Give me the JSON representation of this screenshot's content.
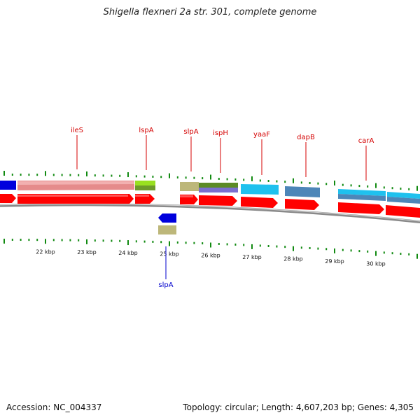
{
  "title": "Shigella flexneri 2a str. 301, complete genome",
  "footer": {
    "accession": "Accession: NC_004337",
    "summary": "Topology: circular; Length: 4,607,203 bp; Genes: 4,305"
  },
  "colors": {
    "label_forward": "#d40000",
    "label_reverse": "#0000cc",
    "tick": "#118a11",
    "backbone": "#8a8a8a",
    "cds": "#ff0000"
  },
  "axis": {
    "ticks": [
      {
        "kbp": 22,
        "label": "22 kbp"
      },
      {
        "kbp": 23,
        "label": "23 kbp"
      },
      {
        "kbp": 24,
        "label": "24 kbp"
      },
      {
        "kbp": 25,
        "label": "25 kbp"
      },
      {
        "kbp": 26,
        "label": "26 kbp"
      },
      {
        "kbp": 27,
        "label": "27 kbp"
      },
      {
        "kbp": 28,
        "label": "28 kbp"
      },
      {
        "kbp": 29,
        "label": "29 kbp"
      },
      {
        "kbp": 30,
        "label": "30 kbp"
      }
    ]
  },
  "gene_labels": [
    {
      "text": "ileS",
      "strand": "forward"
    },
    {
      "text": "lspA",
      "strand": "forward"
    },
    {
      "text": "slpA",
      "strand": "forward"
    },
    {
      "text": "ispH",
      "strand": "forward"
    },
    {
      "text": "yaaF",
      "strand": "forward"
    },
    {
      "text": "dapB",
      "strand": "forward"
    },
    {
      "text": "carA",
      "strand": "forward"
    },
    {
      "text": "slpA",
      "strand": "reverse"
    }
  ]
}
